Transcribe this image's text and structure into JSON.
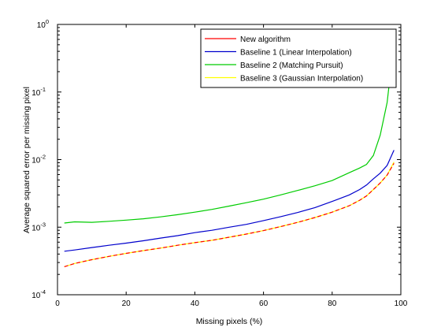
{
  "chart_data": {
    "type": "line",
    "xlabel": "Missing pixels (%)",
    "ylabel": "Average squared error per missing pixel",
    "xlim": [
      0,
      100
    ],
    "ylim": [
      0.0001,
      1
    ],
    "yscale": "log",
    "grid": false,
    "legend_position": "top-right",
    "x_ticks": [
      "0",
      "20",
      "40",
      "60",
      "80",
      "100"
    ],
    "y_ticks": [
      {
        "value": 0.0001,
        "base": "10",
        "exp": "-4"
      },
      {
        "value": 0.001,
        "base": "10",
        "exp": "-3"
      },
      {
        "value": 0.01,
        "base": "10",
        "exp": "-2"
      },
      {
        "value": 0.1,
        "base": "10",
        "exp": "-1"
      },
      {
        "value": 1,
        "base": "10",
        "exp": "0"
      }
    ],
    "x": [
      2,
      5,
      10,
      15,
      20,
      25,
      30,
      35,
      40,
      45,
      50,
      55,
      60,
      65,
      70,
      75,
      80,
      85,
      88,
      90,
      92,
      94,
      96,
      98
    ],
    "series": [
      {
        "name": "New algorithm",
        "color": "#ff0000",
        "dashed": true,
        "values": [
          0.00026,
          0.00029,
          0.00033,
          0.00037,
          0.00041,
          0.00045,
          0.00049,
          0.00054,
          0.00059,
          0.00064,
          0.00071,
          0.00079,
          0.00089,
          0.00102,
          0.00118,
          0.00139,
          0.00167,
          0.00208,
          0.0025,
          0.0029,
          0.0036,
          0.0045,
          0.0059,
          0.0088
        ]
      },
      {
        "name": "Baseline 1 (Linear Interpolation)",
        "color": "#0000cc",
        "dashed": false,
        "values": [
          0.00044,
          0.00046,
          0.0005,
          0.00054,
          0.00058,
          0.00063,
          0.00069,
          0.00075,
          0.00083,
          0.0009,
          0.001,
          0.0011,
          0.00125,
          0.00143,
          0.00165,
          0.00195,
          0.0024,
          0.003,
          0.0036,
          0.0042,
          0.0052,
          0.0063,
          0.0082,
          0.0138
        ]
      },
      {
        "name": "Baseline 2 (Matching Pursuit)",
        "color": "#00cc00",
        "dashed": false,
        "values": [
          0.00115,
          0.0012,
          0.00118,
          0.00122,
          0.00127,
          0.00133,
          0.00142,
          0.00153,
          0.00167,
          0.00183,
          0.00205,
          0.0023,
          0.0026,
          0.003,
          0.0035,
          0.0041,
          0.0049,
          0.0064,
          0.0075,
          0.0085,
          0.0115,
          0.023,
          0.07,
          0.55
        ]
      },
      {
        "name": "Baseline 3 (Gaussian Interpolation)",
        "color": "#ffff00",
        "dashed": false,
        "values": [
          0.00026,
          0.00029,
          0.00033,
          0.00037,
          0.00041,
          0.00045,
          0.00049,
          0.00054,
          0.00059,
          0.00064,
          0.00071,
          0.00079,
          0.00089,
          0.00102,
          0.00118,
          0.00139,
          0.00167,
          0.00208,
          0.0025,
          0.0029,
          0.0036,
          0.0045,
          0.0059,
          0.0092
        ]
      }
    ]
  }
}
